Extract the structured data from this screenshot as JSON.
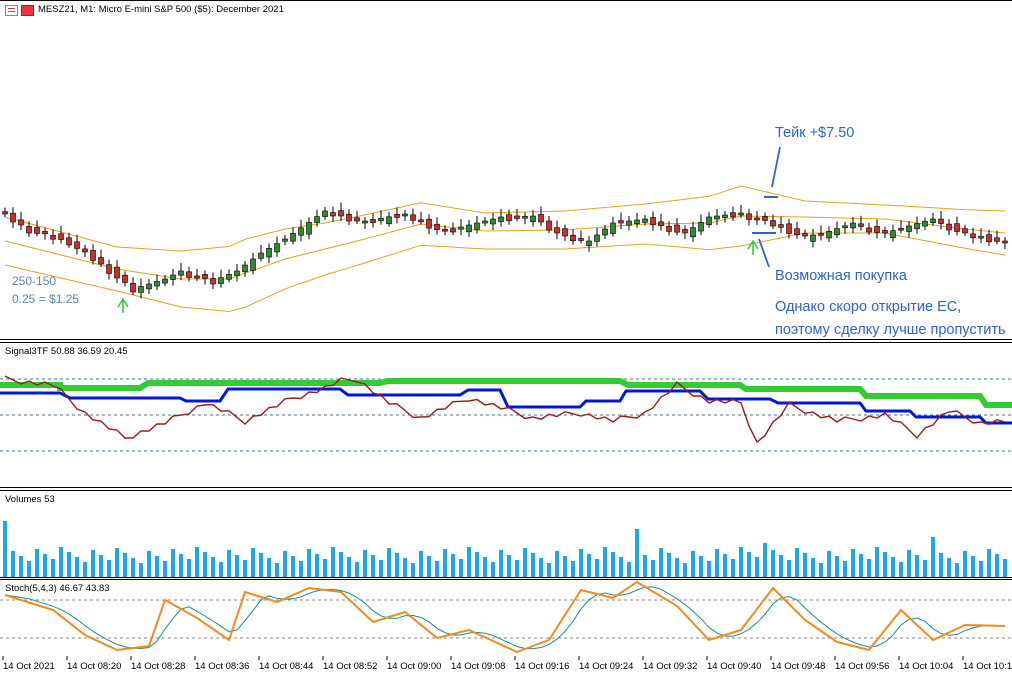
{
  "main_title": "MESZ21, M1:  Micro E-mini S&P 500 ($5): December 2021",
  "annotations": {
    "take": "Тейк +$7.50",
    "buy": "Возможная покупка",
    "note1": "Однако скоро открытие ЕС,",
    "note2": "поэтому сделку лучше пропустить",
    "ratio": "250-150",
    "tick": "0.25 = $1.25"
  },
  "signal_title": "Signal3TF 50.88 36.59 20.45",
  "volumes_title": "Volumes 53",
  "stoch_title": "Stoch(5,4,3) 46.67 43.83",
  "time_labels": [
    "14 Oct 2021",
    "14 Oct 08:20",
    "14 Oct 08:28",
    "14 Oct 08:36",
    "14 Oct 08:44",
    "14 Oct 08:52",
    "14 Oct 09:00",
    "14 Oct 09:08",
    "14 Oct 09:16",
    "14 Oct 09:24",
    "14 Oct 09:32",
    "14 Oct 09:40",
    "14 Oct 09:48",
    "14 Oct 09:56",
    "14 Oct 10:04",
    "14 Oct 10:12"
  ],
  "colors": {
    "bull": "#2e8b2e",
    "bear": "#d42a2a",
    "band": "#e8a020",
    "signal_green": "#33cc33",
    "signal_blue": "#0018d6",
    "signal_red": "#9b1b1b",
    "volume": "#1ea7e8",
    "stoch_main": "#f08c1e",
    "stoch_signal": "#1a8a9a",
    "annotation": "#2b63d6",
    "arrow": "#2ecc2e"
  },
  "icons": [
    "chart-bars-icon",
    "chart-flag-icon"
  ]
}
